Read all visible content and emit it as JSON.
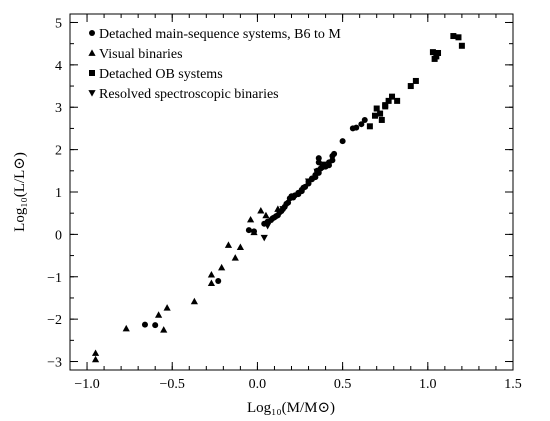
{
  "chart_data": {
    "type": "scatter",
    "title": "",
    "xlabel": "Log₁₀(M/M⊙)",
    "ylabel": "Log₁₀(L/L⊙)",
    "xlim": [
      -1.1,
      1.5
    ],
    "ylim": [
      -3.2,
      5.2
    ],
    "x_ticks": [
      -1.0,
      -0.5,
      0.0,
      0.5,
      1.0,
      1.5
    ],
    "x_tick_labels": [
      "−1.0",
      "−0.5",
      "0.0",
      "0.5",
      "1.0",
      "1.5"
    ],
    "y_ticks": [
      -3,
      -2,
      -1,
      0,
      1,
      2,
      3,
      4,
      5
    ],
    "y_tick_labels": [
      "−3",
      "−2",
      "−1",
      "0",
      "1",
      "2",
      "3",
      "4",
      "5"
    ],
    "grid": false,
    "legend_position": "top-left",
    "series": [
      {
        "name": "Detached main-sequence systems, B6 to M",
        "marker": "circle",
        "points": [
          [
            -0.66,
            -2.13
          ],
          [
            -0.6,
            -2.14
          ],
          [
            -0.23,
            -1.1
          ],
          [
            -0.05,
            0.1
          ],
          [
            -0.02,
            0.07
          ],
          [
            0.04,
            0.25
          ],
          [
            0.06,
            0.3
          ],
          [
            0.08,
            0.34
          ],
          [
            0.1,
            0.4
          ],
          [
            0.12,
            0.45
          ],
          [
            0.14,
            0.55
          ],
          [
            0.15,
            0.6
          ],
          [
            0.17,
            0.72
          ],
          [
            0.19,
            0.85
          ],
          [
            0.2,
            0.9
          ],
          [
            0.22,
            0.92
          ],
          [
            0.24,
            0.98
          ],
          [
            0.26,
            1.05
          ],
          [
            0.28,
            1.12
          ],
          [
            0.3,
            1.2
          ],
          [
            0.32,
            1.3
          ],
          [
            0.34,
            1.4
          ],
          [
            0.35,
            1.5
          ],
          [
            0.36,
            1.45
          ],
          [
            0.37,
            1.55
          ],
          [
            0.38,
            1.6
          ],
          [
            0.4,
            1.6
          ],
          [
            0.42,
            1.7
          ],
          [
            0.44,
            1.75
          ],
          [
            0.36,
            1.7
          ],
          [
            0.38,
            1.58
          ],
          [
            0.3,
            1.25
          ],
          [
            0.27,
            1.1
          ],
          [
            0.24,
            0.95
          ],
          [
            0.21,
            0.87
          ],
          [
            0.18,
            0.75
          ],
          [
            0.16,
            0.65
          ],
          [
            0.13,
            0.52
          ],
          [
            0.11,
            0.43
          ],
          [
            0.09,
            0.38
          ],
          [
            0.45,
            1.9
          ],
          [
            0.5,
            2.2
          ],
          [
            0.56,
            2.5
          ],
          [
            0.58,
            2.52
          ],
          [
            0.61,
            2.6
          ],
          [
            0.63,
            2.7
          ],
          [
            0.36,
            1.8
          ],
          [
            0.42,
            1.63
          ],
          [
            0.44,
            1.85
          ],
          [
            0.34,
            1.35
          ],
          [
            0.32,
            1.32
          ],
          [
            0.26,
            1.02
          ]
        ]
      },
      {
        "name": "Visual binaries",
        "marker": "triangle-up",
        "points": [
          [
            -0.95,
            -2.8
          ],
          [
            -0.95,
            -2.95
          ],
          [
            -0.77,
            -2.22
          ],
          [
            -0.58,
            -1.9
          ],
          [
            -0.55,
            -2.25
          ],
          [
            -0.53,
            -1.73
          ],
          [
            -0.37,
            -1.58
          ],
          [
            -0.27,
            -0.95
          ],
          [
            -0.27,
            -1.15
          ],
          [
            -0.21,
            -0.78
          ],
          [
            -0.17,
            -0.25
          ],
          [
            -0.13,
            -0.55
          ],
          [
            -0.1,
            -0.3
          ],
          [
            -0.04,
            0.35
          ],
          [
            0.02,
            0.56
          ],
          [
            0.05,
            0.45
          ],
          [
            0.12,
            0.6
          ],
          [
            -0.02,
            0.05
          ]
        ]
      },
      {
        "name": "Detached OB systems",
        "marker": "square",
        "points": [
          [
            0.7,
            2.97
          ],
          [
            0.69,
            2.8
          ],
          [
            0.75,
            3.05
          ],
          [
            0.77,
            3.15
          ],
          [
            0.79,
            3.25
          ],
          [
            0.72,
            2.85
          ],
          [
            0.73,
            2.7
          ],
          [
            0.82,
            3.15
          ],
          [
            0.9,
            3.5
          ],
          [
            0.93,
            3.62
          ],
          [
            1.03,
            4.3
          ],
          [
            1.04,
            4.14
          ],
          [
            1.05,
            4.2
          ],
          [
            1.06,
            4.28
          ],
          [
            1.15,
            4.68
          ],
          [
            1.18,
            4.65
          ],
          [
            1.2,
            4.45
          ],
          [
            0.66,
            2.55
          ],
          [
            0.75,
            3.02
          ]
        ]
      },
      {
        "name": "Resolved spectroscopic binaries",
        "marker": "triangle-down",
        "points": [
          [
            0.04,
            -0.08
          ],
          [
            0.06,
            0.2
          ],
          [
            0.3,
            1.25
          ],
          [
            0.39,
            1.65
          ],
          [
            0.35,
            1.48
          ],
          [
            0.15,
            0.6
          ]
        ]
      }
    ]
  }
}
